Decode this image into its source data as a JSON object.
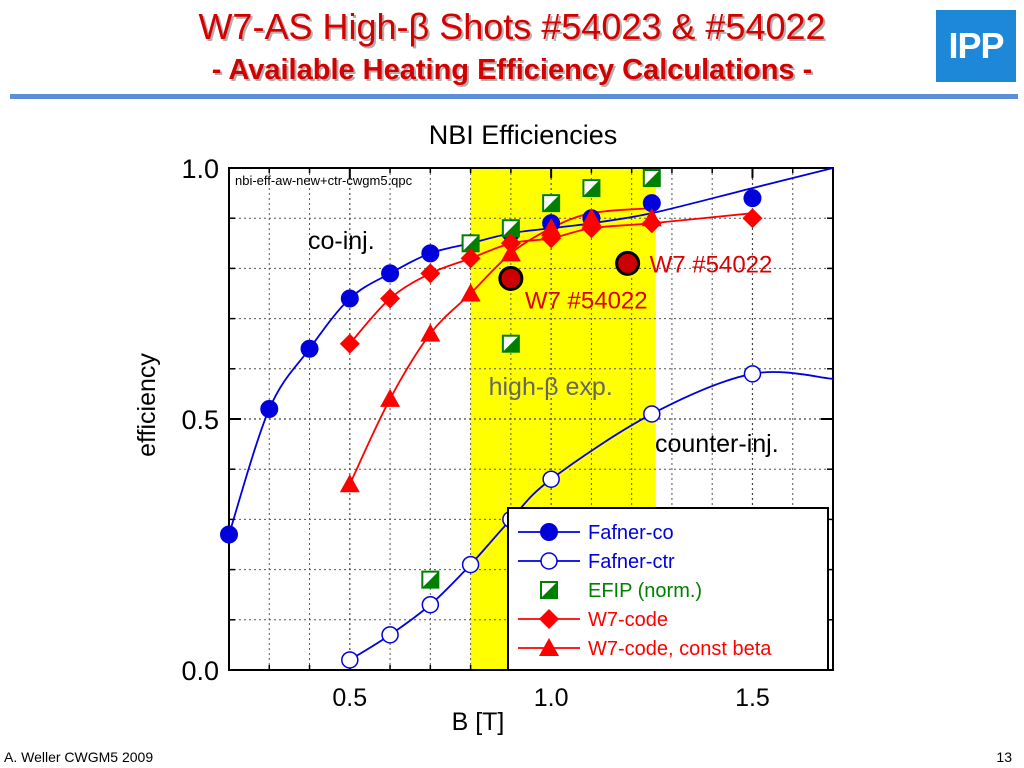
{
  "slide": {
    "title_line1": "W7-AS High-β Shots #54023 & #54022",
    "title_line2": "- Available Heating Efficiency Calculations -",
    "logo_text": "IPP",
    "author": "A. Weller CWGM5 2009",
    "page_number": "13"
  },
  "chart_data": {
    "type": "scatter",
    "title": "NBI Efficiencies",
    "file_label": "nbi-eff-aw-new+ctr-cwgm5.qpc",
    "xlabel": "B [T]",
    "ylabel": "efficiency",
    "xlim": [
      0.2,
      1.7
    ],
    "ylim": [
      0.0,
      1.0
    ],
    "x_ticks": [
      0.5,
      1.0,
      1.5
    ],
    "x_tick_labels": [
      "0.5",
      "1.0",
      "1.5"
    ],
    "y_ticks": [
      0.0,
      0.5,
      1.0
    ],
    "y_tick_labels": [
      "0.0",
      "0.5",
      "1.0"
    ],
    "grid": true,
    "highlight_band": {
      "x_range": [
        0.8,
        1.26
      ],
      "color": "#ffff00",
      "label": "high-β exp."
    },
    "series": [
      {
        "name": "Fafner-co",
        "marker": "circle-filled",
        "color": "#0000dd",
        "x": [
          0.2,
          0.3,
          0.4,
          0.5,
          0.6,
          0.7,
          0.8,
          0.9,
          1.0,
          1.1,
          1.25,
          1.5
        ],
        "y": [
          0.27,
          0.52,
          0.64,
          0.74,
          0.79,
          0.83,
          0.85,
          0.87,
          0.89,
          0.9,
          0.93,
          0.94
        ],
        "curve_x": [
          0.2,
          0.3,
          0.4,
          0.5,
          0.6,
          0.7,
          0.8,
          0.9,
          1.0,
          1.1,
          1.25,
          1.5,
          1.7
        ],
        "curve_y": [
          0.27,
          0.52,
          0.64,
          0.74,
          0.79,
          0.83,
          0.85,
          0.87,
          0.88,
          0.89,
          0.91,
          0.96,
          1.0
        ]
      },
      {
        "name": "Fafner-ctr",
        "marker": "circle-open",
        "color": "#0000dd",
        "x": [
          0.5,
          0.6,
          0.7,
          0.8,
          0.9,
          1.0,
          1.25,
          1.5
        ],
        "y": [
          0.02,
          0.07,
          0.13,
          0.21,
          0.3,
          0.38,
          0.51,
          0.59
        ],
        "curve_x": [
          0.5,
          0.6,
          0.7,
          0.8,
          0.9,
          1.0,
          1.25,
          1.5,
          1.7
        ],
        "curve_y": [
          0.02,
          0.07,
          0.13,
          0.21,
          0.3,
          0.38,
          0.51,
          0.59,
          0.58
        ]
      },
      {
        "name": "EFIP (norm.)",
        "marker": "square-half",
        "color": "#008000",
        "x": [
          0.7,
          0.8,
          0.9,
          0.9,
          1.0,
          1.1,
          1.25
        ],
        "y": [
          0.18,
          0.85,
          0.88,
          0.65,
          0.93,
          0.96,
          0.98
        ]
      },
      {
        "name": "W7-code",
        "marker": "diamond",
        "color": "#ff0000",
        "x": [
          0.5,
          0.6,
          0.7,
          0.8,
          0.9,
          1.0,
          1.1,
          1.25,
          1.5
        ],
        "y": [
          0.65,
          0.74,
          0.79,
          0.82,
          0.85,
          0.86,
          0.88,
          0.89,
          0.9
        ],
        "curve_x": [
          0.5,
          0.6,
          0.7,
          0.8,
          0.9,
          1.0,
          1.1,
          1.25,
          1.5
        ],
        "curve_y": [
          0.65,
          0.74,
          0.79,
          0.82,
          0.85,
          0.86,
          0.88,
          0.89,
          0.91
        ]
      },
      {
        "name": "W7-code, const beta",
        "marker": "triangle",
        "color": "#ff0000",
        "x": [
          0.5,
          0.6,
          0.7,
          0.8,
          0.9,
          1.0,
          1.1,
          1.25
        ],
        "y": [
          0.37,
          0.54,
          0.67,
          0.75,
          0.83,
          0.88,
          0.9,
          0.9
        ],
        "curve_x": [
          0.5,
          0.6,
          0.7,
          0.8,
          0.9,
          1.0,
          1.1,
          1.25
        ],
        "curve_y": [
          0.37,
          0.54,
          0.67,
          0.75,
          0.83,
          0.88,
          0.91,
          0.92
        ]
      }
    ],
    "special_points": [
      {
        "label": "W7 #54022",
        "x": 0.9,
        "y": 0.78,
        "color": "#cc0000"
      },
      {
        "label": "W7 #54022",
        "x": 1.19,
        "y": 0.81,
        "color": "#cc0000"
      }
    ],
    "annotations": {
      "co_inj": "co-inj.",
      "counter_inj": "counter-inj."
    },
    "legend_position": "bottom-right"
  }
}
